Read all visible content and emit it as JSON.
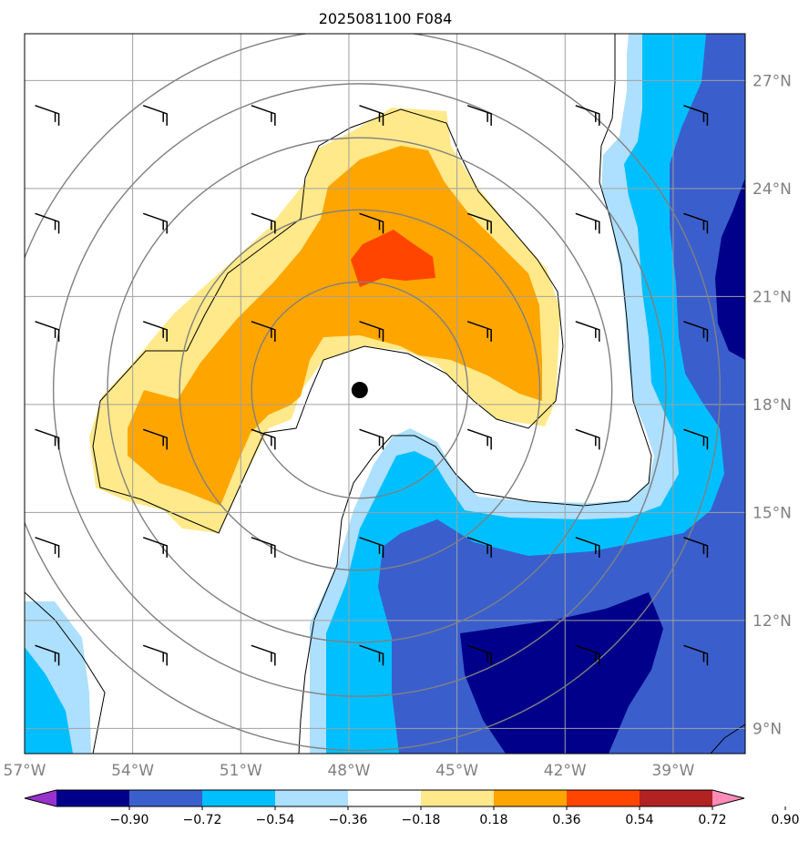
{
  "chart_data": {
    "type": "contour map",
    "title": "2025081100 F084",
    "lon_ticks": [
      "57°W",
      "54°W",
      "51°W",
      "48°W",
      "45°W",
      "42°W",
      "39°W"
    ],
    "lon_values": [
      -57,
      -54,
      -51,
      -48,
      -45,
      -42,
      -39
    ],
    "lat_ticks": [
      "27°N",
      "24°N",
      "21°N",
      "18°N",
      "15°N",
      "12°N",
      "9°N"
    ],
    "lat_values": [
      27,
      24,
      21,
      18,
      15,
      12,
      9
    ],
    "lon_range": [
      -57,
      -37
    ],
    "lat_range": [
      8.3,
      28.3
    ],
    "grid": true,
    "center_marker": {
      "lon": -47.7,
      "lat": 18.4
    },
    "range_rings_deg": [
      3,
      5,
      7,
      8.5,
      10
    ],
    "colorbar": {
      "levels": [
        "−0.90",
        "−0.72",
        "−0.54",
        "−0.36",
        "−0.18",
        "0.18",
        "0.36",
        "0.54",
        "0.72",
        "0.90"
      ],
      "colors": [
        "#9932CC",
        "#00008B",
        "#3A5FCD",
        "#00BFFF",
        "#ADDFFF",
        "#FFFFFF",
        "#FFE98A",
        "#FFA500",
        "#FF4500",
        "#B22222",
        "#FF8CB8"
      ],
      "extend": "both"
    },
    "wind_barbs": [
      {
        "lon": -56,
        "lat": 26
      },
      {
        "lon": -53,
        "lat": 26
      },
      {
        "lon": -50,
        "lat": 26
      },
      {
        "lon": -47,
        "lat": 26
      },
      {
        "lon": -44,
        "lat": 26
      },
      {
        "lon": -41,
        "lat": 26
      },
      {
        "lon": -38,
        "lat": 26
      },
      {
        "lon": -56,
        "lat": 23
      },
      {
        "lon": -53,
        "lat": 23
      },
      {
        "lon": -50,
        "lat": 23
      },
      {
        "lon": -47,
        "lat": 23
      },
      {
        "lon": -44,
        "lat": 23
      },
      {
        "lon": -41,
        "lat": 23
      },
      {
        "lon": -38,
        "lat": 23
      },
      {
        "lon": -56,
        "lat": 20
      },
      {
        "lon": -53,
        "lat": 20
      },
      {
        "lon": -50,
        "lat": 20
      },
      {
        "lon": -47,
        "lat": 20
      },
      {
        "lon": -44,
        "lat": 20
      },
      {
        "lon": -41,
        "lat": 20
      },
      {
        "lon": -38,
        "lat": 20
      },
      {
        "lon": -56,
        "lat": 17
      },
      {
        "lon": -53,
        "lat": 17
      },
      {
        "lon": -50,
        "lat": 17
      },
      {
        "lon": -47,
        "lat": 17
      },
      {
        "lon": -44,
        "lat": 17
      },
      {
        "lon": -41,
        "lat": 17
      },
      {
        "lon": -38,
        "lat": 17
      },
      {
        "lon": -56,
        "lat": 14
      },
      {
        "lon": -53,
        "lat": 14
      },
      {
        "lon": -50,
        "lat": 14
      },
      {
        "lon": -47,
        "lat": 14
      },
      {
        "lon": -44,
        "lat": 14
      },
      {
        "lon": -41,
        "lat": 14
      },
      {
        "lon": -38,
        "lat": 14
      },
      {
        "lon": -56,
        "lat": 11
      },
      {
        "lon": -53,
        "lat": 11
      },
      {
        "lon": -50,
        "lat": 11
      },
      {
        "lon": -47,
        "lat": 11
      },
      {
        "lon": -44,
        "lat": 11
      },
      {
        "lon": -41,
        "lat": 11
      },
      {
        "lon": -38,
        "lat": 11
      }
    ]
  }
}
